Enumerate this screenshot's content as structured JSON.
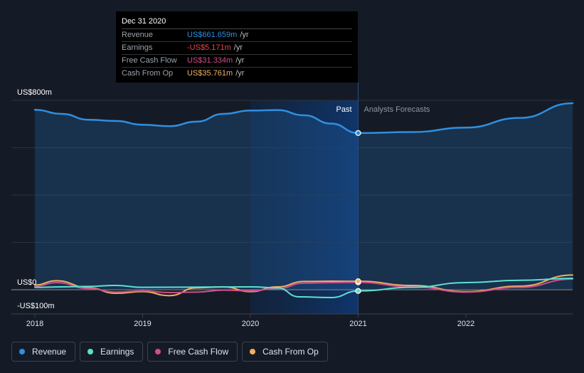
{
  "chart_data": {
    "type": "line",
    "x_ticks": [
      "2018",
      "2019",
      "2020",
      "2021",
      "2022"
    ],
    "y_labels": [
      "US$800m",
      "US$0",
      "-US$100m"
    ],
    "ylim": [
      -100,
      800
    ],
    "past_label": "Past",
    "forecast_label": "Analysts Forecasts",
    "series": [
      {
        "name": "Revenue",
        "color": "#2f8fe0",
        "x": [
          2018.0,
          2018.25,
          2018.5,
          2018.75,
          2019.0,
          2019.25,
          2019.5,
          2019.75,
          2020.0,
          2020.25,
          2020.5,
          2020.75,
          2021.0,
          2021.5,
          2022.0,
          2022.5,
          2022.99
        ],
        "values": [
          760,
          743,
          718,
          713,
          697,
          691,
          710,
          743,
          757,
          759,
          737,
          702,
          662,
          666,
          685,
          726,
          788
        ]
      },
      {
        "name": "Earnings",
        "color": "#5de0cf",
        "x": [
          2018.0,
          2018.25,
          2018.5,
          2018.75,
          2019.0,
          2019.5,
          2020.0,
          2020.25,
          2020.45,
          2020.75,
          2021.0,
          2021.5,
          2022.0,
          2022.5,
          2022.99
        ],
        "values": [
          10,
          12,
          14,
          18,
          10,
          11,
          12,
          8,
          -30,
          -33,
          -5.171,
          10,
          30,
          40,
          48
        ]
      },
      {
        "name": "Free Cash Flow",
        "color": "#d14c88",
        "x": [
          2018.0,
          2018.2,
          2018.5,
          2018.75,
          2019.0,
          2019.25,
          2019.5,
          2019.75,
          2020.0,
          2020.25,
          2020.5,
          2020.75,
          2021.0,
          2021.5,
          2022.0,
          2022.5,
          2022.99
        ],
        "values": [
          15,
          30,
          5,
          -10,
          -5,
          -12,
          -10,
          -2,
          -5,
          5,
          28,
          30,
          31.334,
          12,
          -10,
          10,
          45
        ]
      },
      {
        "name": "Cash From Op",
        "color": "#f0b062",
        "x": [
          2018.0,
          2018.2,
          2018.5,
          2018.75,
          2019.0,
          2019.25,
          2019.5,
          2019.75,
          2020.0,
          2020.25,
          2020.5,
          2020.75,
          2021.0,
          2021.5,
          2022.0,
          2022.5,
          2022.99
        ],
        "values": [
          20,
          38,
          8,
          -15,
          -8,
          -25,
          8,
          12,
          -8,
          12,
          35,
          36,
          35.761,
          18,
          -8,
          15,
          62
        ]
      }
    ]
  },
  "tooltip": {
    "date": "Dec 31 2020",
    "unit": "/yr",
    "rows": [
      {
        "name": "Revenue",
        "value": "US$661.659m",
        "color": "#2f8fe0"
      },
      {
        "name": "Earnings",
        "value": "-US$5.171m",
        "color": "#e5484d"
      },
      {
        "name": "Free Cash Flow",
        "value": "US$31.334m",
        "color": "#d14c88"
      },
      {
        "name": "Cash From Op",
        "value": "US$35.761m",
        "color": "#f0b062"
      }
    ]
  },
  "legend": [
    {
      "label": "Revenue",
      "color": "#2f8fe0"
    },
    {
      "label": "Earnings",
      "color": "#5de0cf"
    },
    {
      "label": "Free Cash Flow",
      "color": "#d14c88"
    },
    {
      "label": "Cash From Op",
      "color": "#f0b062"
    }
  ]
}
